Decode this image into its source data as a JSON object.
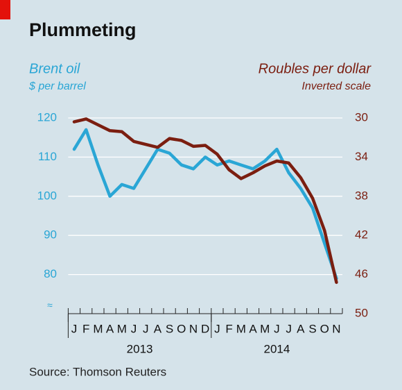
{
  "chart_data": {
    "type": "line",
    "title": "Plummeting",
    "y_label": "Brent oil",
    "y_sublabel": "$ per barrel",
    "y2_label": "Roubles per dollar",
    "y2_sublabel": "Inverted scale",
    "source": "Source: Thomson Reuters",
    "categories": [
      "J",
      "F",
      "M",
      "A",
      "M",
      "J",
      "J",
      "A",
      "S",
      "O",
      "N",
      "D",
      "J",
      "F",
      "M",
      "A",
      "M",
      "J",
      "J",
      "A",
      "S",
      "O",
      "N"
    ],
    "years": [
      "2013",
      "2014"
    ],
    "series": [
      {
        "name": "Brent oil",
        "color": "#2aa6d5",
        "axis": "y",
        "values": [
          112,
          117,
          108,
          100,
          103,
          102,
          107,
          112,
          111,
          108,
          107,
          110,
          108,
          109,
          108,
          107,
          109,
          112,
          106,
          102,
          97,
          88,
          79
        ]
      },
      {
        "name": "Roubles per dollar",
        "color": "#7b1e10",
        "axis": "y2",
        "values": [
          30.4,
          30.1,
          30.7,
          31.3,
          31.4,
          32.4,
          32.7,
          33.0,
          32.1,
          32.3,
          32.9,
          32.8,
          33.7,
          35.3,
          36.2,
          35.6,
          34.9,
          34.4,
          34.6,
          36.1,
          38.2,
          41.5,
          46.8
        ]
      }
    ],
    "ylim": [
      70,
      120
    ],
    "yticks": [
      80,
      90,
      100,
      110,
      120
    ],
    "y2lim": [
      30,
      50
    ],
    "y2ticks": [
      30,
      34,
      38,
      42,
      46,
      50
    ],
    "y2_inverted": true,
    "grid": true
  }
}
